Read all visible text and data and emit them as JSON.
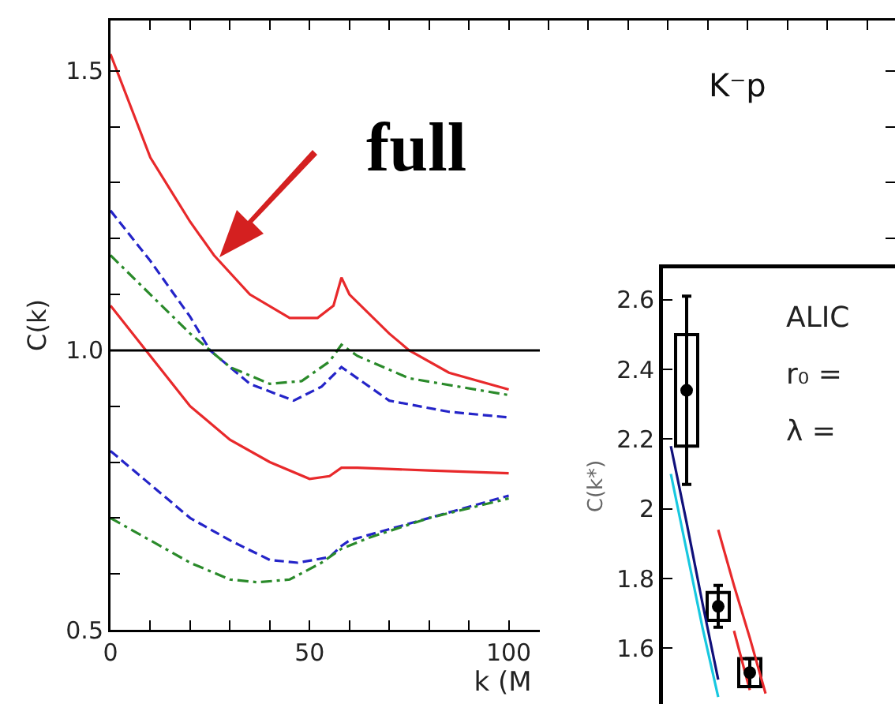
{
  "chart_data": [
    {
      "type": "line",
      "xlabel": "k (M",
      "ylabel": "C(k)",
      "xlim": [
        0,
        197
      ],
      "ylim": [
        0.5,
        1.59
      ],
      "xticks": [
        0,
        {
          "value": 10,
          "label": null
        },
        {
          "value": 20,
          "label": null
        },
        {
          "value": 30,
          "label": null
        },
        {
          "value": 40,
          "label": null
        },
        50,
        {
          "value": 60,
          "label": null
        },
        {
          "value": 70,
          "label": null
        },
        {
          "value": 80,
          "label": null
        },
        {
          "value": 90,
          "label": null
        },
        100,
        {
          "value": 110,
          "label": null
        },
        {
          "value": 120,
          "label": null
        },
        {
          "value": 130,
          "label": null
        },
        {
          "value": 140,
          "label": null
        },
        {
          "value": 150,
          "label": null
        },
        {
          "value": 160,
          "label": null
        },
        {
          "value": 170,
          "label": null
        },
        {
          "value": 180,
          "label": null
        },
        {
          "value": 190,
          "label": null
        }
      ],
      "yticks": [
        0.5,
        {
          "value": 0.6,
          "label": null
        },
        {
          "value": 0.7,
          "label": null
        },
        {
          "value": 0.8,
          "label": null
        },
        {
          "value": 0.9,
          "label": null
        },
        {
          "value": 1,
          "label": "1.0"
        },
        {
          "value": 1.1,
          "label": null
        },
        {
          "value": 1.2,
          "label": null
        },
        {
          "value": 1.3,
          "label": null
        },
        {
          "value": 1.4,
          "label": null
        },
        1.5
      ],
      "ref_lines": [
        {
          "axis": "y",
          "value": 1,
          "color": "#000000"
        }
      ],
      "annotations": [
        "full",
        "K⁻p"
      ],
      "series": [
        {
          "color": "#e8292b",
          "line_style": "solid",
          "x": [
            0,
            10,
            20,
            26,
            35,
            45,
            52,
            56,
            58,
            60,
            70,
            75,
            85,
            100
          ],
          "values": [
            1.53,
            1.345,
            1.23,
            1.17,
            1.1,
            1.058,
            1.058,
            1.08,
            1.13,
            1.1,
            1.03,
            1.0,
            0.96,
            0.93
          ]
        },
        {
          "color": "#2424c8",
          "line_style": "dashed",
          "x": [
            0,
            10,
            20,
            25,
            35,
            46,
            53,
            58,
            60,
            70,
            85,
            100
          ],
          "values": [
            1.25,
            1.16,
            1.06,
            1.0,
            0.94,
            0.91,
            0.935,
            0.97,
            0.96,
            0.91,
            0.89,
            0.88
          ]
        },
        {
          "color": "#2a8a2a",
          "line_style": "dashdot",
          "x": [
            0,
            10,
            20,
            30,
            40,
            48,
            55,
            58,
            62,
            75,
            100
          ],
          "values": [
            1.17,
            1.1,
            1.03,
            0.97,
            0.94,
            0.945,
            0.98,
            1.01,
            0.99,
            0.95,
            0.92
          ]
        },
        {
          "color": "#e8292b",
          "line_style": "solid",
          "x": [
            0,
            10,
            20,
            30,
            40,
            50,
            55,
            58,
            62,
            80,
            100
          ],
          "values": [
            1.08,
            0.99,
            0.9,
            0.84,
            0.8,
            0.77,
            0.775,
            0.79,
            0.79,
            0.785,
            0.78
          ]
        },
        {
          "color": "#2424c8",
          "line_style": "dashed",
          "x": [
            0,
            10,
            20,
            30,
            40,
            47,
            55,
            58,
            60,
            80,
            100
          ],
          "values": [
            0.82,
            0.76,
            0.7,
            0.66,
            0.625,
            0.62,
            0.63,
            0.65,
            0.66,
            0.7,
            0.74
          ]
        },
        {
          "color": "#2a8a2a",
          "line_style": "dashdot",
          "x": [
            0,
            10,
            20,
            30,
            37,
            45,
            53,
            58,
            65,
            80,
            100
          ],
          "values": [
            0.7,
            0.66,
            0.62,
            0.59,
            0.585,
            0.59,
            0.62,
            0.645,
            0.665,
            0.7,
            0.735
          ]
        }
      ]
    },
    {
      "type": "scatter",
      "ylabel": "C(k*)",
      "ylim": [
        1.44,
        2.69
      ],
      "yticks": [
        1.6,
        1.8,
        2,
        2.2,
        2.4,
        2.6
      ],
      "tick_labels": "y",
      "categories": [
        null,
        null,
        null,
        null,
        null,
        null,
        null,
        null,
        null,
        null,
        null,
        null,
        null,
        null,
        null,
        null,
        null,
        null,
        null,
        null
      ],
      "annotations": [
        "ALIC",
        "r₀ =",
        "λ ="
      ],
      "series": [
        {
          "type": "line",
          "color": "#10107a",
          "values": [
            2.18,
            1.96,
            1.73,
            1.51,
            null,
            null,
            null,
            null,
            null,
            null,
            null,
            null,
            null,
            null,
            null,
            null,
            null,
            null,
            null,
            null
          ]
        },
        {
          "type": "line",
          "color": "#18c8e0",
          "values": [
            2.1,
            1.88,
            1.66,
            1.46,
            null,
            null,
            null,
            null,
            null,
            null,
            null,
            null,
            null,
            null,
            null,
            null,
            null,
            null,
            null,
            null
          ]
        },
        {
          "type": "line",
          "color": "#e8292b",
          "values": [
            null,
            null,
            null,
            1.94,
            1.78,
            1.63,
            1.47,
            null,
            null,
            null,
            null,
            null,
            null,
            null,
            null,
            null,
            null,
            null,
            null,
            null
          ]
        },
        {
          "type": "line",
          "color": "#e8292b",
          "values": [
            null,
            null,
            null,
            null,
            1.65,
            1.48,
            null,
            null,
            null,
            null,
            null,
            null,
            null,
            null,
            null,
            null,
            null,
            null,
            null,
            null
          ]
        },
        {
          "type": "bar",
          "color": "#000000",
          "base": [
            null,
            2.18,
            null,
            1.68,
            null,
            1.49,
            null,
            null,
            null,
            null,
            null,
            null,
            null,
            null,
            null,
            null,
            null,
            null,
            null,
            null
          ],
          "values": [
            null,
            0.32,
            null,
            0.08,
            null,
            0.08,
            null,
            null,
            null,
            null,
            null,
            null,
            null,
            null,
            null,
            null,
            null,
            null,
            null,
            null
          ]
        },
        {
          "color": "#000000",
          "marker": "circle",
          "values": [
            null,
            2.34,
            null,
            1.72,
            null,
            1.53,
            null,
            null,
            null,
            null,
            null,
            null,
            null,
            null,
            null,
            null,
            null,
            null,
            null,
            null
          ],
          "errors": [
            null,
            0.27,
            null,
            0.06,
            null,
            0.04,
            null,
            null,
            null,
            null,
            null,
            null,
            null,
            null,
            null,
            null,
            null,
            null,
            null,
            null
          ]
        }
      ]
    }
  ]
}
